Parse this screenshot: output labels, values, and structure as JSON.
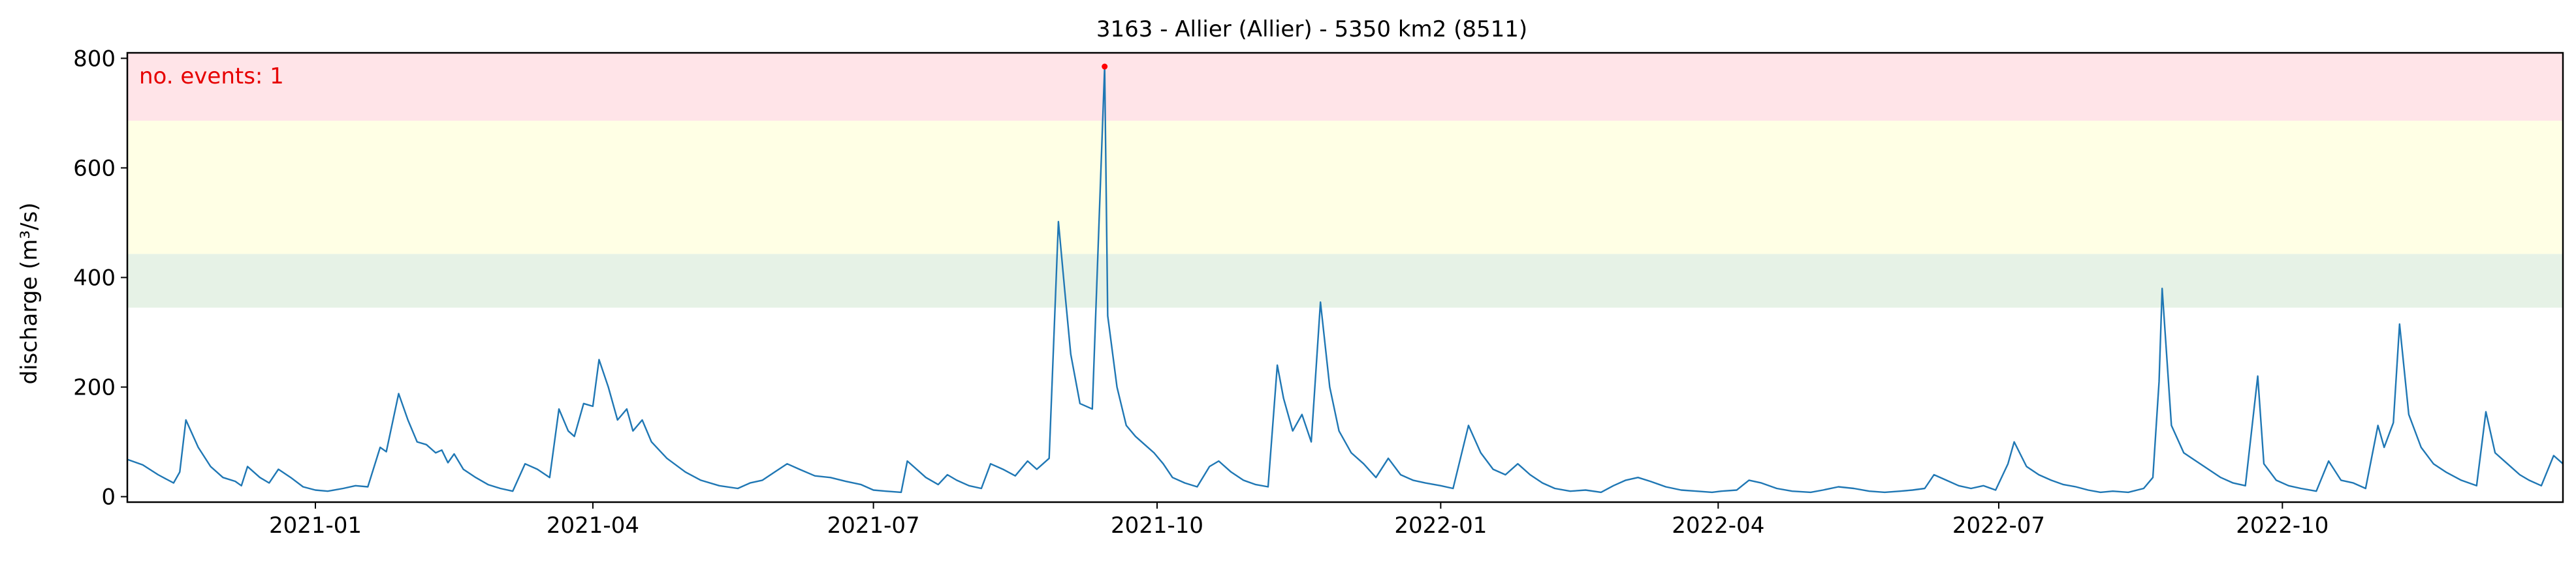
{
  "chart_data": {
    "type": "line",
    "title": "3163 - Allier (Allier) - 5350 km2 (8511)",
    "ylabel": "discharge (m³/s)",
    "xlabel": "",
    "annotation": "no. events: 1",
    "x_range": [
      "2020-11-01",
      "2022-12-31"
    ],
    "ylim": [
      -10,
      810
    ],
    "yticks": [
      0,
      200,
      400,
      600,
      800
    ],
    "xticks": [
      {
        "date": "2021-01-01",
        "label": "2021-01"
      },
      {
        "date": "2021-04-01",
        "label": "2021-04"
      },
      {
        "date": "2021-07-01",
        "label": "2021-07"
      },
      {
        "date": "2021-10-01",
        "label": "2021-10"
      },
      {
        "date": "2022-01-01",
        "label": "2022-01"
      },
      {
        "date": "2022-04-01",
        "label": "2022-04"
      },
      {
        "date": "2022-07-01",
        "label": "2022-07"
      },
      {
        "date": "2022-10-01",
        "label": "2022-10"
      }
    ],
    "threshold_bands": [
      {
        "from": 345,
        "to": 443,
        "color": "#e6f2e6"
      },
      {
        "from": 443,
        "to": 686,
        "color": "#ffffe5"
      },
      {
        "from": 686,
        "to": 810,
        "color": "#ffe4e8"
      }
    ],
    "series_color": "#1f77b4",
    "event_color": "#ff0000",
    "events": [
      {
        "x": "2021-09-14",
        "y": 785
      }
    ],
    "series": [
      {
        "points": [
          [
            "2020-11-01",
            68
          ],
          [
            "2020-11-06",
            58
          ],
          [
            "2020-11-11",
            40
          ],
          [
            "2020-11-16",
            25
          ],
          [
            "2020-11-18",
            45
          ],
          [
            "2020-11-20",
            140
          ],
          [
            "2020-11-24",
            90
          ],
          [
            "2020-11-28",
            55
          ],
          [
            "2020-12-02",
            35
          ],
          [
            "2020-12-06",
            28
          ],
          [
            "2020-12-08",
            20
          ],
          [
            "2020-12-10",
            55
          ],
          [
            "2020-12-14",
            35
          ],
          [
            "2020-12-17",
            25
          ],
          [
            "2020-12-20",
            50
          ],
          [
            "2020-12-24",
            35
          ],
          [
            "2020-12-28",
            18
          ],
          [
            "2021-01-01",
            12
          ],
          [
            "2021-01-05",
            10
          ],
          [
            "2021-01-10",
            15
          ],
          [
            "2021-01-14",
            20
          ],
          [
            "2021-01-18",
            18
          ],
          [
            "2021-01-22",
            90
          ],
          [
            "2021-01-24",
            82
          ],
          [
            "2021-01-28",
            188
          ],
          [
            "2021-01-31",
            140
          ],
          [
            "2021-02-03",
            100
          ],
          [
            "2021-02-06",
            95
          ],
          [
            "2021-02-09",
            80
          ],
          [
            "2021-02-11",
            85
          ],
          [
            "2021-02-13",
            62
          ],
          [
            "2021-02-15",
            78
          ],
          [
            "2021-02-18",
            50
          ],
          [
            "2021-02-22",
            35
          ],
          [
            "2021-02-26",
            22
          ],
          [
            "2021-03-02",
            15
          ],
          [
            "2021-03-06",
            10
          ],
          [
            "2021-03-10",
            60
          ],
          [
            "2021-03-14",
            50
          ],
          [
            "2021-03-18",
            35
          ],
          [
            "2021-03-21",
            160
          ],
          [
            "2021-03-24",
            120
          ],
          [
            "2021-03-26",
            110
          ],
          [
            "2021-03-29",
            170
          ],
          [
            "2021-04-01",
            165
          ],
          [
            "2021-04-03",
            250
          ],
          [
            "2021-04-06",
            200
          ],
          [
            "2021-04-09",
            140
          ],
          [
            "2021-04-12",
            160
          ],
          [
            "2021-04-14",
            120
          ],
          [
            "2021-04-17",
            140
          ],
          [
            "2021-04-20",
            100
          ],
          [
            "2021-04-25",
            70
          ],
          [
            "2021-05-01",
            45
          ],
          [
            "2021-05-06",
            30
          ],
          [
            "2021-05-12",
            20
          ],
          [
            "2021-05-18",
            15
          ],
          [
            "2021-05-22",
            25
          ],
          [
            "2021-05-26",
            30
          ],
          [
            "2021-05-30",
            45
          ],
          [
            "2021-06-03",
            60
          ],
          [
            "2021-06-07",
            50
          ],
          [
            "2021-06-12",
            38
          ],
          [
            "2021-06-17",
            35
          ],
          [
            "2021-06-22",
            28
          ],
          [
            "2021-06-27",
            22
          ],
          [
            "2021-07-01",
            12
          ],
          [
            "2021-07-05",
            10
          ],
          [
            "2021-07-10",
            8
          ],
          [
            "2021-07-12",
            65
          ],
          [
            "2021-07-14",
            55
          ],
          [
            "2021-07-18",
            35
          ],
          [
            "2021-07-22",
            22
          ],
          [
            "2021-07-25",
            40
          ],
          [
            "2021-07-28",
            30
          ],
          [
            "2021-08-01",
            20
          ],
          [
            "2021-08-05",
            15
          ],
          [
            "2021-08-08",
            60
          ],
          [
            "2021-08-12",
            50
          ],
          [
            "2021-08-16",
            38
          ],
          [
            "2021-08-20",
            65
          ],
          [
            "2021-08-23",
            50
          ],
          [
            "2021-08-27",
            70
          ],
          [
            "2021-08-30",
            502
          ],
          [
            "2021-09-01",
            380
          ],
          [
            "2021-09-03",
            260
          ],
          [
            "2021-09-06",
            170
          ],
          [
            "2021-09-10",
            160
          ],
          [
            "2021-09-14",
            785
          ],
          [
            "2021-09-15",
            330
          ],
          [
            "2021-09-18",
            200
          ],
          [
            "2021-09-21",
            130
          ],
          [
            "2021-09-24",
            110
          ],
          [
            "2021-09-27",
            95
          ],
          [
            "2021-09-30",
            80
          ],
          [
            "2021-10-03",
            60
          ],
          [
            "2021-10-06",
            35
          ],
          [
            "2021-10-10",
            25
          ],
          [
            "2021-10-14",
            18
          ],
          [
            "2021-10-18",
            55
          ],
          [
            "2021-10-21",
            65
          ],
          [
            "2021-10-25",
            45
          ],
          [
            "2021-10-29",
            30
          ],
          [
            "2021-11-02",
            22
          ],
          [
            "2021-11-06",
            18
          ],
          [
            "2021-11-09",
            240
          ],
          [
            "2021-11-11",
            180
          ],
          [
            "2021-11-14",
            120
          ],
          [
            "2021-11-17",
            150
          ],
          [
            "2021-11-20",
            100
          ],
          [
            "2021-11-23",
            355
          ],
          [
            "2021-11-26",
            200
          ],
          [
            "2021-11-29",
            120
          ],
          [
            "2021-12-03",
            80
          ],
          [
            "2021-12-07",
            60
          ],
          [
            "2021-12-11",
            35
          ],
          [
            "2021-12-15",
            70
          ],
          [
            "2021-12-19",
            40
          ],
          [
            "2021-12-23",
            30
          ],
          [
            "2021-12-27",
            25
          ],
          [
            "2022-01-01",
            20
          ],
          [
            "2022-01-05",
            15
          ],
          [
            "2022-01-10",
            130
          ],
          [
            "2022-01-14",
            80
          ],
          [
            "2022-01-18",
            50
          ],
          [
            "2022-01-22",
            40
          ],
          [
            "2022-01-26",
            60
          ],
          [
            "2022-01-30",
            40
          ],
          [
            "2022-02-03",
            25
          ],
          [
            "2022-02-07",
            15
          ],
          [
            "2022-02-12",
            10
          ],
          [
            "2022-02-17",
            12
          ],
          [
            "2022-02-22",
            8
          ],
          [
            "2022-02-26",
            20
          ],
          [
            "2022-03-02",
            30
          ],
          [
            "2022-03-06",
            35
          ],
          [
            "2022-03-10",
            28
          ],
          [
            "2022-03-15",
            18
          ],
          [
            "2022-03-20",
            12
          ],
          [
            "2022-03-25",
            10
          ],
          [
            "2022-03-30",
            8
          ],
          [
            "2022-04-02",
            10
          ],
          [
            "2022-04-07",
            12
          ],
          [
            "2022-04-11",
            30
          ],
          [
            "2022-04-15",
            25
          ],
          [
            "2022-04-20",
            15
          ],
          [
            "2022-04-25",
            10
          ],
          [
            "2022-05-01",
            8
          ],
          [
            "2022-05-05",
            12
          ],
          [
            "2022-05-10",
            18
          ],
          [
            "2022-05-15",
            15
          ],
          [
            "2022-05-20",
            10
          ],
          [
            "2022-05-25",
            8
          ],
          [
            "2022-05-30",
            10
          ],
          [
            "2022-06-03",
            12
          ],
          [
            "2022-06-07",
            15
          ],
          [
            "2022-06-10",
            40
          ],
          [
            "2022-06-14",
            30
          ],
          [
            "2022-06-18",
            20
          ],
          [
            "2022-06-22",
            15
          ],
          [
            "2022-06-26",
            20
          ],
          [
            "2022-06-30",
            12
          ],
          [
            "2022-07-04",
            60
          ],
          [
            "2022-07-06",
            100
          ],
          [
            "2022-07-10",
            55
          ],
          [
            "2022-07-14",
            40
          ],
          [
            "2022-07-18",
            30
          ],
          [
            "2022-07-22",
            22
          ],
          [
            "2022-07-26",
            18
          ],
          [
            "2022-07-30",
            12
          ],
          [
            "2022-08-03",
            8
          ],
          [
            "2022-08-07",
            10
          ],
          [
            "2022-08-12",
            8
          ],
          [
            "2022-08-17",
            15
          ],
          [
            "2022-08-20",
            35
          ],
          [
            "2022-08-22",
            210
          ],
          [
            "2022-08-23",
            380
          ],
          [
            "2022-08-26",
            130
          ],
          [
            "2022-08-30",
            80
          ],
          [
            "2022-09-03",
            65
          ],
          [
            "2022-09-07",
            50
          ],
          [
            "2022-09-11",
            35
          ],
          [
            "2022-09-15",
            25
          ],
          [
            "2022-09-19",
            20
          ],
          [
            "2022-09-23",
            220
          ],
          [
            "2022-09-25",
            60
          ],
          [
            "2022-09-29",
            30
          ],
          [
            "2022-10-03",
            20
          ],
          [
            "2022-10-07",
            15
          ],
          [
            "2022-10-12",
            10
          ],
          [
            "2022-10-16",
            65
          ],
          [
            "2022-10-20",
            30
          ],
          [
            "2022-10-24",
            25
          ],
          [
            "2022-10-28",
            15
          ],
          [
            "2022-11-01",
            130
          ],
          [
            "2022-11-03",
            90
          ],
          [
            "2022-11-06",
            135
          ],
          [
            "2022-11-08",
            315
          ],
          [
            "2022-11-11",
            150
          ],
          [
            "2022-11-15",
            90
          ],
          [
            "2022-11-19",
            60
          ],
          [
            "2022-11-23",
            45
          ],
          [
            "2022-11-28",
            30
          ],
          [
            "2022-12-03",
            20
          ],
          [
            "2022-12-06",
            155
          ],
          [
            "2022-12-09",
            80
          ],
          [
            "2022-12-13",
            60
          ],
          [
            "2022-12-17",
            40
          ],
          [
            "2022-12-20",
            30
          ],
          [
            "2022-12-24",
            20
          ],
          [
            "2022-12-28",
            75
          ],
          [
            "2022-12-31",
            60
          ]
        ]
      }
    ]
  }
}
